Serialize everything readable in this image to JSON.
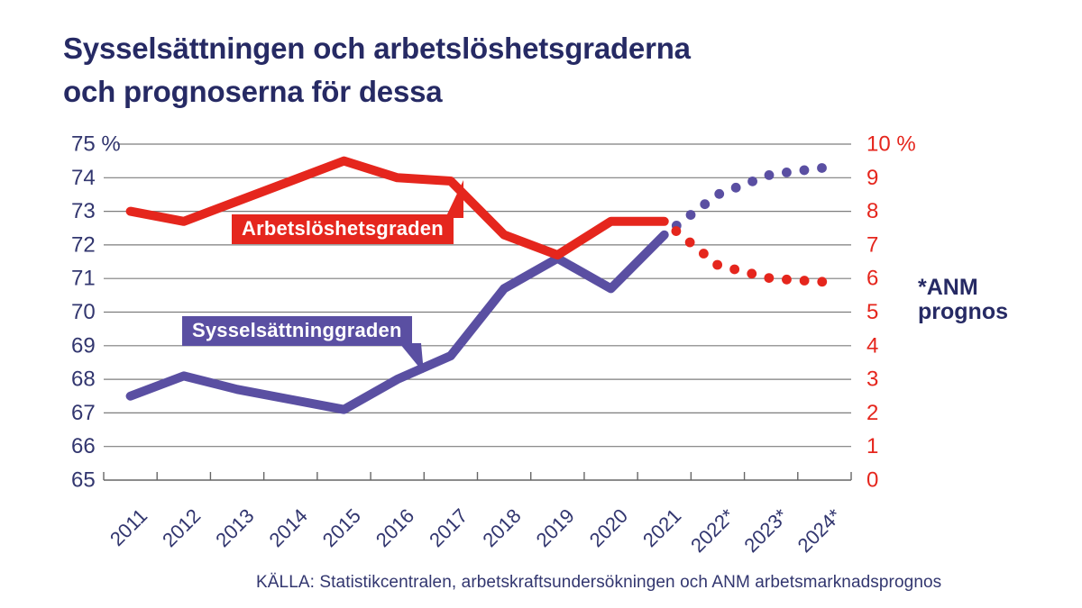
{
  "title": {
    "line1": "Sysselsättningen och arbetslöshetsgraderna",
    "line2": "och prognoserna för dessa"
  },
  "annotation": {
    "line1": "*ANM",
    "line2": "prognos"
  },
  "source": "KÄLLA: Statistikcentralen, arbetskraftsundersökningen och ANM arbetsmarknadsprognos",
  "colors": {
    "accent_red": "#e5261d",
    "accent_purple": "#5a4fa2",
    "navy": "#262a64",
    "axis_navy": "#32366f",
    "grid": "#7d7d7d",
    "axis_line": "#666666"
  },
  "chart_data": {
    "type": "line",
    "title": "Sysselsättningen och arbetslöshetsgraderna och prognoserna för dessa",
    "categories": [
      "2011",
      "2012",
      "2013",
      "2014",
      "2015",
      "2016",
      "2017",
      "2018",
      "2019",
      "2020",
      "2021",
      "2022*",
      "2023*",
      "2024*"
    ],
    "forecast_start_index": 11,
    "forecast_note": "*ANM prognos",
    "grid": true,
    "legend_position": "inline-callouts",
    "series": [
      {
        "id": "employment",
        "label": "Sysselsättninggraden",
        "axis": "left",
        "color": "#5a4fa2",
        "line_style": "solid-then-dotted-forecast",
        "values": [
          67.5,
          68.1,
          67.7,
          67.4,
          67.1,
          68.0,
          68.7,
          70.7,
          71.6,
          70.7,
          72.3,
          73.5,
          74.1,
          74.3
        ]
      },
      {
        "id": "unemployment",
        "label": "Arbetslöshetsgraden",
        "axis": "right",
        "color": "#e5261d",
        "line_style": "solid-then-dotted-forecast",
        "values": [
          8.0,
          7.7,
          8.3,
          8.9,
          9.5,
          9.0,
          8.9,
          7.3,
          6.7,
          7.7,
          7.7,
          6.4,
          6.0,
          5.9
        ]
      }
    ],
    "left_axis": {
      "min": 65,
      "max": 75,
      "step": 1,
      "unit": "%",
      "tick_labels": [
        "75 %",
        "74",
        "73",
        "72",
        "71",
        "70",
        "69",
        "68",
        "67",
        "66",
        "65"
      ]
    },
    "right_axis": {
      "min": 0,
      "max": 10,
      "step": 1,
      "unit": "%",
      "tick_labels": [
        "10 %",
        "9",
        "8",
        "7",
        "6",
        "5",
        "4",
        "3",
        "2",
        "1",
        "0"
      ]
    }
  }
}
